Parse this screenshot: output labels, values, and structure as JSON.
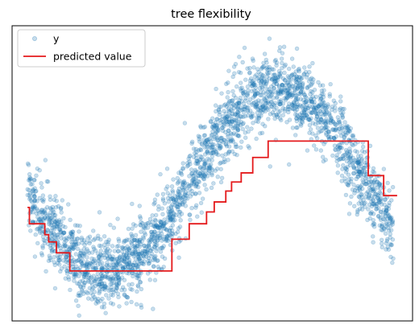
{
  "chart_data": {
    "type": "scatter",
    "title": "tree flexibility",
    "xlabel": "",
    "ylabel": "",
    "axes_ticks_visible": false,
    "grid": false,
    "legend": {
      "placement": "top-left",
      "entries": [
        "y",
        "predicted value"
      ]
    },
    "xlim": [
      -0.08,
      2.0
    ],
    "ylim": [
      -1.55,
      1.7
    ],
    "series": [
      {
        "name": "y",
        "kind": "scatter",
        "color": "#1f77b4",
        "alpha": 0.25,
        "generator": "y = sin(3.5*x + 3.3) + noise",
        "x_range": [
          0.0,
          1.9
        ],
        "noise_sd": 0.2,
        "n_points": 2600
      },
      {
        "name": "predicted value",
        "kind": "step",
        "color": "#e41a1c",
        "x": [
          0.0,
          0.01,
          0.09,
          0.11,
          0.15,
          0.22,
          0.75,
          0.84,
          0.93,
          0.97,
          1.03,
          1.06,
          1.11,
          1.17,
          1.25,
          1.77,
          1.85,
          1.92
        ],
        "y": [
          -0.3,
          -0.48,
          -0.6,
          -0.68,
          -0.8,
          -1.0,
          -0.65,
          -0.48,
          -0.35,
          -0.24,
          -0.12,
          -0.02,
          0.08,
          0.25,
          0.43,
          0.05,
          -0.17,
          -0.17
        ]
      }
    ]
  }
}
